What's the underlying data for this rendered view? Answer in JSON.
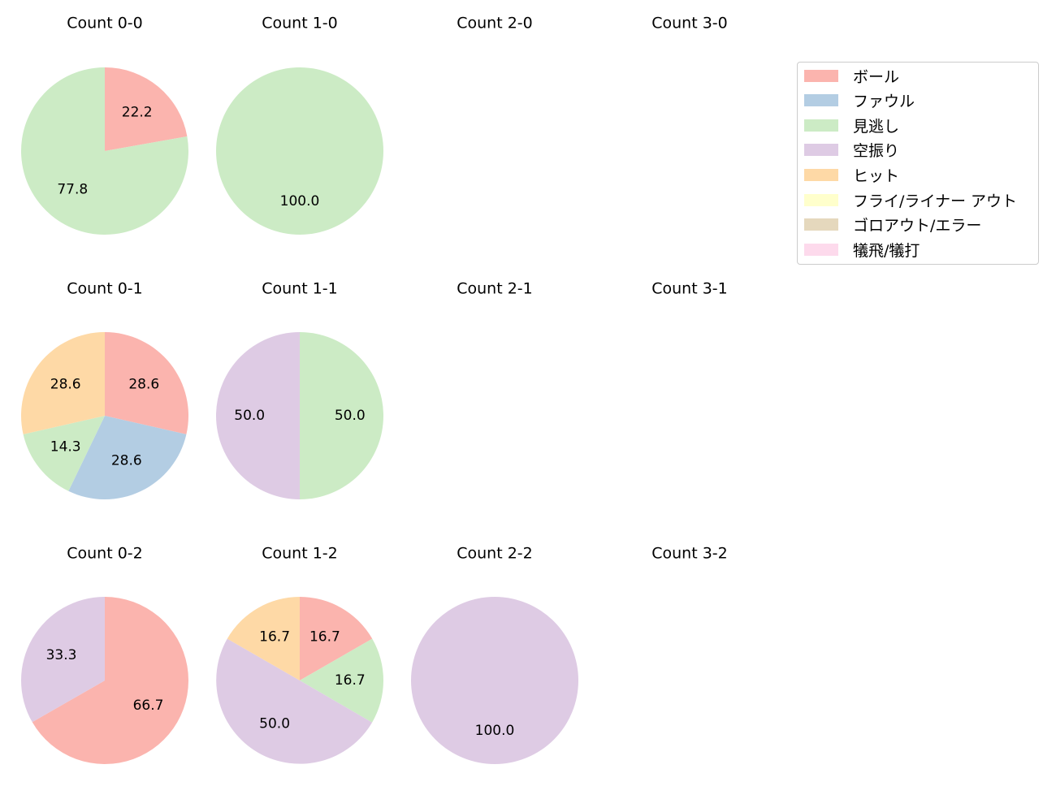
{
  "legend": [
    {
      "label": "ボール",
      "color": "#fbb4ae"
    },
    {
      "label": "ファウル",
      "color": "#b3cde3"
    },
    {
      "label": "見逃し",
      "color": "#ccebc5"
    },
    {
      "label": "空振り",
      "color": "#decbe4"
    },
    {
      "label": "ヒット",
      "color": "#fed9a6"
    },
    {
      "label": "フライ/ライナー アウト",
      "color": "#ffffcc"
    },
    {
      "label": "ゴロアウト/エラー",
      "color": "#e5d8bd"
    },
    {
      "label": "犠飛/犠打",
      "color": "#fddaec"
    }
  ],
  "chart_data": [
    {
      "type": "pie",
      "title": "Count 0-0",
      "slices": [
        {
          "category": "ボール",
          "value": 22.2
        },
        {
          "category": "見逃し",
          "value": 77.8
        }
      ]
    },
    {
      "type": "pie",
      "title": "Count 1-0",
      "slices": [
        {
          "category": "見逃し",
          "value": 100.0
        }
      ]
    },
    {
      "type": "pie",
      "title": "Count 2-0",
      "slices": []
    },
    {
      "type": "pie",
      "title": "Count 3-0",
      "slices": []
    },
    {
      "type": "pie",
      "title": "Count 0-1",
      "slices": [
        {
          "category": "ボール",
          "value": 28.6
        },
        {
          "category": "ファウル",
          "value": 28.6
        },
        {
          "category": "見逃し",
          "value": 14.3
        },
        {
          "category": "ヒット",
          "value": 28.6
        }
      ]
    },
    {
      "type": "pie",
      "title": "Count 1-1",
      "slices": [
        {
          "category": "見逃し",
          "value": 50.0
        },
        {
          "category": "空振り",
          "value": 50.0
        }
      ]
    },
    {
      "type": "pie",
      "title": "Count 2-1",
      "slices": []
    },
    {
      "type": "pie",
      "title": "Count 3-1",
      "slices": []
    },
    {
      "type": "pie",
      "title": "Count 0-2",
      "slices": [
        {
          "category": "ボール",
          "value": 66.7
        },
        {
          "category": "空振り",
          "value": 33.3
        }
      ]
    },
    {
      "type": "pie",
      "title": "Count 1-2",
      "slices": [
        {
          "category": "ボール",
          "value": 16.7
        },
        {
          "category": "見逃し",
          "value": 16.7
        },
        {
          "category": "空振り",
          "value": 50.0
        },
        {
          "category": "ヒット",
          "value": 16.7
        }
      ]
    },
    {
      "type": "pie",
      "title": "Count 2-2",
      "slices": [
        {
          "category": "空振り",
          "value": 100.0
        }
      ]
    },
    {
      "type": "pie",
      "title": "Count 3-2",
      "slices": []
    }
  ]
}
